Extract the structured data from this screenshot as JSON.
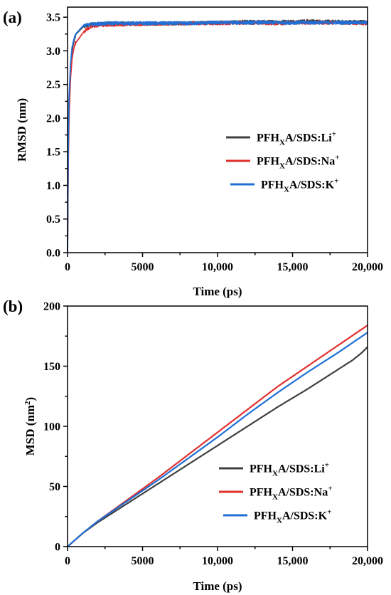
{
  "chart_data": [
    {
      "type": "line",
      "panel_label": "(a)",
      "xlabel": "Time (ps)",
      "ylabel": "RMSD (nm)",
      "xlim": [
        0,
        20000
      ],
      "ylim": [
        0,
        3.65
      ],
      "xticks": [
        0,
        5000,
        10000,
        15000,
        20000
      ],
      "xtick_labels": [
        "0",
        "5000",
        "10,000",
        "15,000",
        "20,000"
      ],
      "yticks": [
        0,
        0.5,
        1.0,
        1.5,
        2.0,
        2.5,
        3.0,
        3.5
      ],
      "ytick_labels": [
        "0.0",
        "0.5",
        "1.0",
        "1.5",
        "2.0",
        "2.5",
        "3.0",
        "3.5"
      ],
      "legend_position": "center-right",
      "series": [
        {
          "name": "PFHXA/SDS:Li+",
          "label_main": "PFH",
          "label_sub": "X",
          "label_mid": "A/SDS:Li",
          "label_sup": "+",
          "color": "#404040",
          "x": [
            0,
            50,
            100,
            200,
            300,
            400,
            500,
            700,
            900,
            1200,
            1500,
            2000,
            3000,
            5000,
            8000,
            10000,
            12000,
            14000,
            16000,
            18000,
            20000
          ],
          "y": [
            0,
            1.5,
            2.2,
            2.75,
            3.0,
            3.12,
            3.2,
            3.29,
            3.34,
            3.37,
            3.39,
            3.4,
            3.41,
            3.4,
            3.41,
            3.42,
            3.43,
            3.43,
            3.44,
            3.43,
            3.43
          ]
        },
        {
          "name": "PFHXA/SDS:Na+",
          "label_main": "PFH",
          "label_sub": "X",
          "label_mid": "A/SDS:Na",
          "label_sup": "+",
          "color": "#e0302e",
          "x": [
            0,
            50,
            100,
            200,
            300,
            400,
            500,
            700,
            900,
            1200,
            1500,
            2000,
            3000,
            5000,
            8000,
            10000,
            12000,
            14000,
            16000,
            18000,
            20000
          ],
          "y": [
            0,
            1.3,
            2.0,
            2.6,
            2.88,
            3.02,
            3.1,
            3.2,
            3.26,
            3.31,
            3.35,
            3.38,
            3.39,
            3.4,
            3.41,
            3.41,
            3.42,
            3.41,
            3.42,
            3.42,
            3.41
          ]
        },
        {
          "name": "PFHXA/SDS:K+",
          "label_main": "PFH",
          "label_sub": "X",
          "label_mid": "A/SDS:K",
          "label_sup": "+",
          "color": "#1f6fd6",
          "x": [
            0,
            50,
            100,
            200,
            300,
            400,
            500,
            700,
            900,
            1200,
            1500,
            2000,
            3000,
            5000,
            8000,
            10000,
            12000,
            14000,
            16000,
            18000,
            20000
          ],
          "y": [
            0,
            1.6,
            2.3,
            2.8,
            3.05,
            3.15,
            3.23,
            3.3,
            3.35,
            3.38,
            3.39,
            3.4,
            3.41,
            3.41,
            3.41,
            3.42,
            3.42,
            3.42,
            3.42,
            3.42,
            3.42
          ]
        }
      ]
    },
    {
      "type": "line",
      "panel_label": "(b)",
      "xlabel": "Time (ps)",
      "ylabel": "MSD (nm",
      "ylabel_sup": "2",
      "ylabel_end": ")",
      "xlim": [
        0,
        20000
      ],
      "ylim": [
        0,
        200
      ],
      "xticks": [
        0,
        5000,
        10000,
        15000,
        20000
      ],
      "xtick_labels": [
        "0",
        "5000",
        "10,000",
        "15,000",
        "20,000"
      ],
      "yticks": [
        0,
        50,
        100,
        150,
        200
      ],
      "ytick_labels": [
        "0",
        "50",
        "100",
        "150",
        "200"
      ],
      "legend_position": "bottom-right",
      "series": [
        {
          "name": "PFHXA/SDS:Li+",
          "label_main": "PFH",
          "label_sub": "X",
          "label_mid": "A/SDS:Li",
          "label_sup": "+",
          "color": "#404040",
          "x": [
            0,
            1000,
            2000,
            4000,
            6000,
            8000,
            10000,
            12000,
            14000,
            16000,
            18000,
            19000,
            19600,
            20000
          ],
          "y": [
            0,
            11,
            20,
            36,
            52,
            68,
            84,
            100,
            116,
            131,
            147,
            155,
            161,
            166
          ]
        },
        {
          "name": "PFHXA/SDS:Na+",
          "label_main": "PFH",
          "label_sub": "X",
          "label_mid": "A/SDS:Na",
          "label_sup": "+",
          "color": "#e0302e",
          "x": [
            0,
            1000,
            2000,
            4000,
            6000,
            8000,
            10000,
            12000,
            14000,
            16000,
            18000,
            20000
          ],
          "y": [
            0,
            11,
            21,
            39,
            57,
            76,
            95,
            114,
            133,
            150,
            167,
            184
          ]
        },
        {
          "name": "PFHXA/SDS:K+",
          "label_main": "PFH",
          "label_sub": "X",
          "label_mid": "A/SDS:K",
          "label_sup": "+",
          "color": "#1f6fd6",
          "x": [
            0,
            1000,
            2000,
            4000,
            6000,
            8000,
            10000,
            12000,
            14000,
            16000,
            18000,
            20000
          ],
          "y": [
            0,
            11,
            21,
            38,
            55,
            73,
            91,
            110,
            128,
            145,
            161,
            178
          ]
        }
      ]
    }
  ]
}
